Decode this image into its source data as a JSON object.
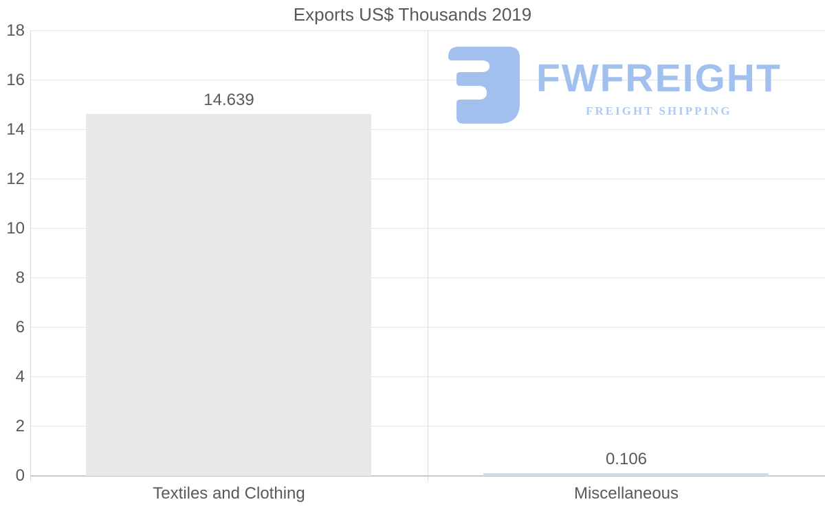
{
  "chart_data": {
    "type": "bar",
    "title": "Exports US$ Thousands 2019",
    "categories": [
      "Textiles and Clothing",
      "Miscellaneous"
    ],
    "values": [
      14.639,
      0.106
    ],
    "value_labels": [
      "14.639",
      "0.106"
    ],
    "xlabel": "",
    "ylabel": "",
    "ylim": [
      0,
      18
    ],
    "ytick_step": 2,
    "grid": true,
    "legend": false,
    "bar_colors": [
      "#e8e8e8",
      "#d0dcee"
    ],
    "bar_width_fraction": 0.718
  },
  "watermark": {
    "brand": "FWFREIGHT",
    "tagline": "FREIGHT SHIPPING"
  },
  "colors": {
    "background": "#ffffff",
    "title_text": "#595959",
    "axis_text": "#595959",
    "gridline": "#e3e3e3",
    "axis_line": "#d9d9d9",
    "baseline": "#c9c9c9",
    "logo_primary": "#a1c0ee",
    "logo_tagline": "#b0c9f1"
  }
}
